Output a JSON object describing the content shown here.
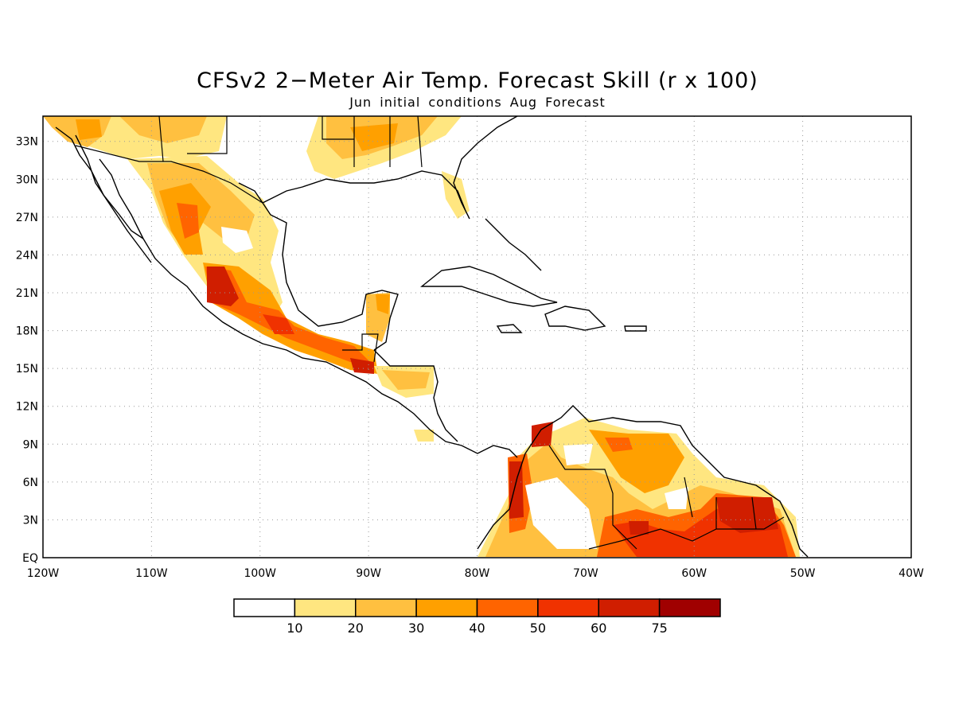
{
  "title": "CFSv2 2−Meter Air Temp. Forecast Skill (r x 100)",
  "subtitle": "Jun initial conditions  Aug Forecast",
  "map": {
    "region": "Central America and Caribbean",
    "lon_range": [
      -120,
      -40
    ],
    "lat_range": [
      0,
      35
    ],
    "grid": "dotted gray",
    "lon_labels": [
      "120W",
      "110W",
      "100W",
      "90W",
      "80W",
      "70W",
      "60W",
      "50W",
      "40W"
    ],
    "lat_labels": [
      "EQ",
      "3N",
      "6N",
      "9N",
      "12N",
      "15N",
      "18N",
      "21N",
      "24N",
      "27N",
      "30N",
      "33N"
    ]
  },
  "colorbar": {
    "colors": [
      "#ffffff",
      "#ffe680",
      "#ffc040",
      "#ffa000",
      "#ff6400",
      "#f03200",
      "#d01e00",
      "#a00000"
    ],
    "labels": [
      "10",
      "20",
      "30",
      "40",
      "50",
      "60",
      "75"
    ]
  },
  "skill_regions": [
    {
      "name": "mexico-sierra-madre-occidental",
      "level": 5
    },
    {
      "name": "mexico-southern-pacific-coast",
      "level": 5
    },
    {
      "name": "guatemala",
      "level": 6
    },
    {
      "name": "yucatan-east",
      "level": 3
    },
    {
      "name": "colombia-pacific",
      "level": 5
    },
    {
      "name": "colombia-north",
      "level": 6
    },
    {
      "name": "venezuela",
      "level": 4
    },
    {
      "name": "guyana-suriname",
      "level": 5
    },
    {
      "name": "brazil-north",
      "level": 5
    },
    {
      "name": "southern-us",
      "level": 2
    }
  ]
}
